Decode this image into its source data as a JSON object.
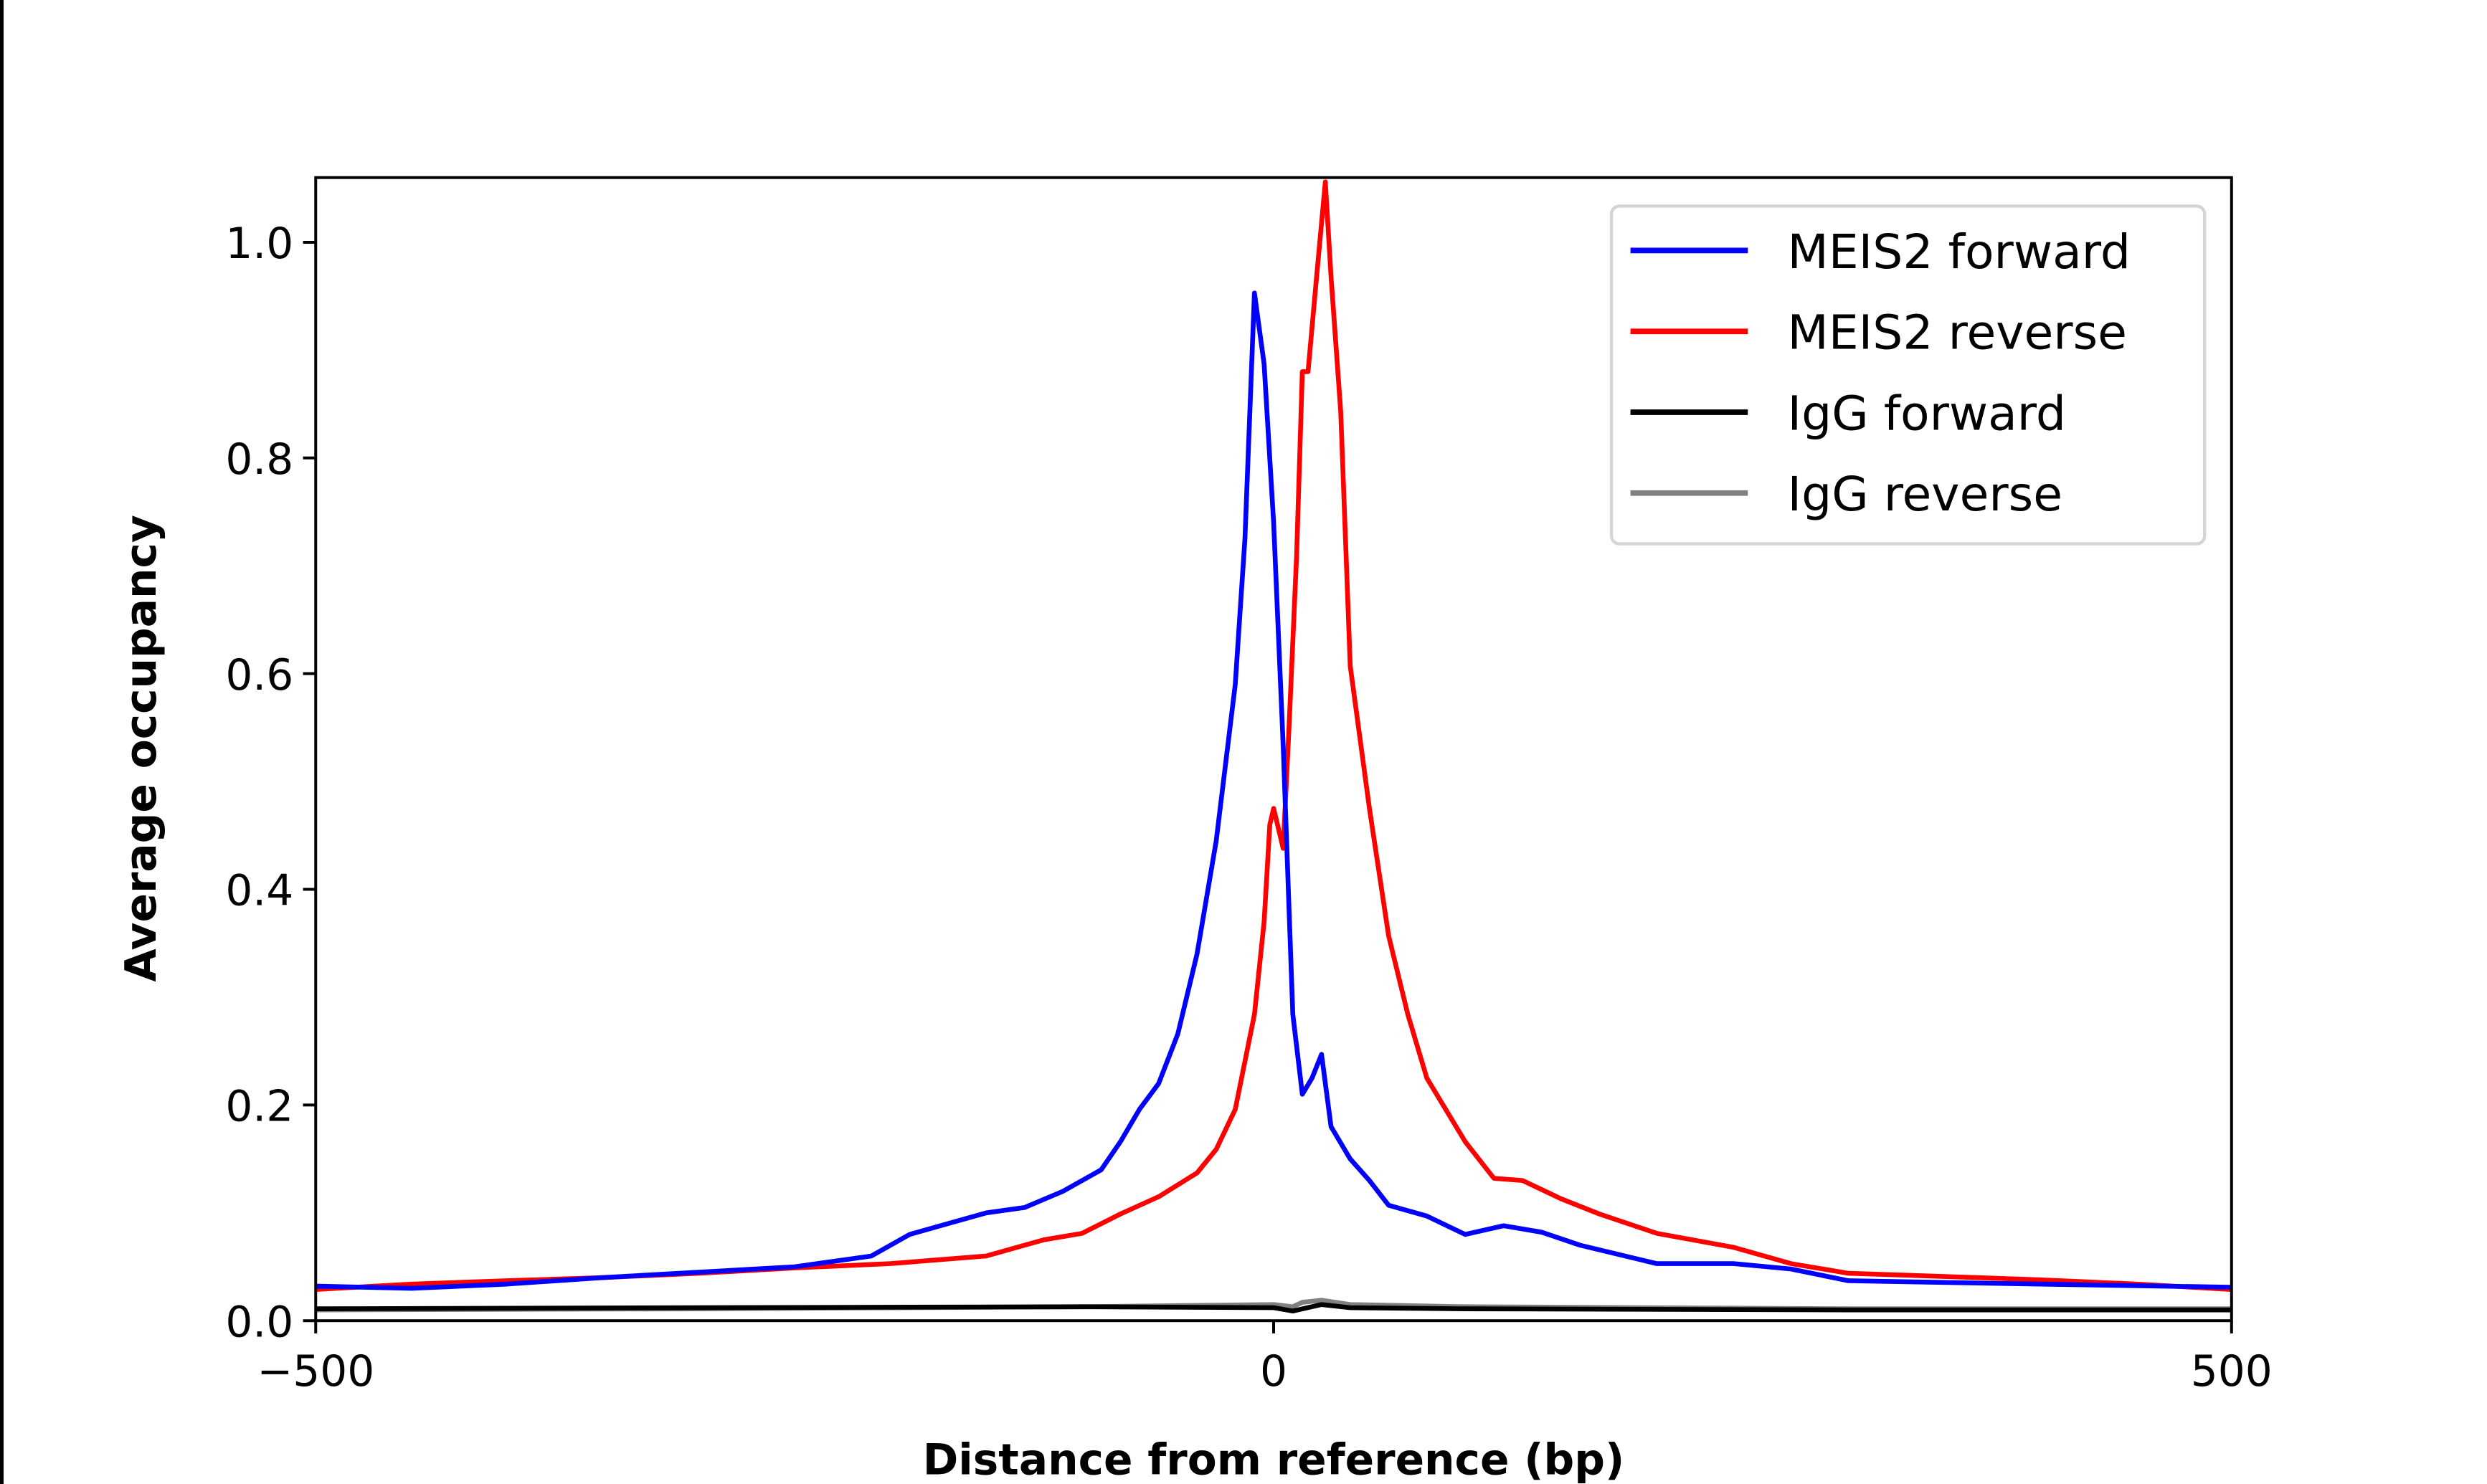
{
  "chart_data": {
    "type": "line",
    "title": "",
    "xlabel": "Distance from reference (bp)",
    "ylabel": "Average occupancy",
    "xlim": [
      -500,
      500
    ],
    "ylim": [
      0,
      1.06
    ],
    "xticks": [
      -500,
      0,
      500
    ],
    "xtick_labels": [
      "−500",
      "0",
      "500"
    ],
    "yticks": [
      0.0,
      0.2,
      0.4,
      0.6,
      0.8,
      1.0
    ],
    "ytick_labels": [
      "0.0",
      "0.2",
      "0.4",
      "0.6",
      "0.8",
      "1.0"
    ],
    "grid": false,
    "legend_position": "top-right",
    "series": [
      {
        "name": "MEIS2 forward",
        "color": "#0000ff",
        "points": [
          [
            -500,
            0.032
          ],
          [
            -450,
            0.03
          ],
          [
            -400,
            0.034
          ],
          [
            -350,
            0.04
          ],
          [
            -300,
            0.045
          ],
          [
            -250,
            0.05
          ],
          [
            -210,
            0.06
          ],
          [
            -190,
            0.08
          ],
          [
            -170,
            0.09
          ],
          [
            -150,
            0.1
          ],
          [
            -130,
            0.105
          ],
          [
            -110,
            0.12
          ],
          [
            -90,
            0.14
          ],
          [
            -80,
            0.166
          ],
          [
            -70,
            0.196
          ],
          [
            -60,
            0.22
          ],
          [
            -50,
            0.266
          ],
          [
            -40,
            0.34
          ],
          [
            -30,
            0.445
          ],
          [
            -20,
            0.59
          ],
          [
            -15,
            0.725
          ],
          [
            -10,
            0.953
          ],
          [
            -5,
            0.887
          ],
          [
            0,
            0.74
          ],
          [
            5,
            0.534
          ],
          [
            10,
            0.284
          ],
          [
            15,
            0.21
          ],
          [
            20,
            0.225
          ],
          [
            25,
            0.247
          ],
          [
            30,
            0.18
          ],
          [
            40,
            0.15
          ],
          [
            50,
            0.13
          ],
          [
            60,
            0.107
          ],
          [
            80,
            0.097
          ],
          [
            100,
            0.08
          ],
          [
            120,
            0.088
          ],
          [
            140,
            0.082
          ],
          [
            160,
            0.07
          ],
          [
            200,
            0.053
          ],
          [
            240,
            0.053
          ],
          [
            270,
            0.048
          ],
          [
            300,
            0.037
          ],
          [
            400,
            0.034
          ],
          [
            500,
            0.031
          ]
        ]
      },
      {
        "name": "MEIS2 reverse",
        "color": "#ff0000",
        "points": [
          [
            -500,
            0.029
          ],
          [
            -450,
            0.034
          ],
          [
            -400,
            0.037
          ],
          [
            -350,
            0.04
          ],
          [
            -300,
            0.044
          ],
          [
            -250,
            0.049
          ],
          [
            -200,
            0.053
          ],
          [
            -150,
            0.06
          ],
          [
            -120,
            0.075
          ],
          [
            -100,
            0.081
          ],
          [
            -80,
            0.099
          ],
          [
            -60,
            0.115
          ],
          [
            -40,
            0.137
          ],
          [
            -30,
            0.159
          ],
          [
            -20,
            0.196
          ],
          [
            -10,
            0.284
          ],
          [
            -5,
            0.37
          ],
          [
            -2,
            0.46
          ],
          [
            0,
            0.475
          ],
          [
            5,
            0.438
          ],
          [
            8,
            0.55
          ],
          [
            12,
            0.71
          ],
          [
            15,
            0.88
          ],
          [
            18,
            0.88
          ],
          [
            22,
            0.96
          ],
          [
            27,
            1.056
          ],
          [
            30,
            0.968
          ],
          [
            35,
            0.843
          ],
          [
            40,
            0.607
          ],
          [
            50,
            0.475
          ],
          [
            60,
            0.357
          ],
          [
            70,
            0.284
          ],
          [
            80,
            0.225
          ],
          [
            100,
            0.166
          ],
          [
            115,
            0.132
          ],
          [
            130,
            0.13
          ],
          [
            150,
            0.113
          ],
          [
            170,
            0.099
          ],
          [
            200,
            0.081
          ],
          [
            240,
            0.068
          ],
          [
            270,
            0.053
          ],
          [
            300,
            0.044
          ],
          [
            350,
            0.041
          ],
          [
            400,
            0.038
          ],
          [
            450,
            0.034
          ],
          [
            500,
            0.029
          ]
        ]
      },
      {
        "name": "IgG forward",
        "color": "#000000",
        "points": [
          [
            -500,
            0.011
          ],
          [
            -300,
            0.012
          ],
          [
            -100,
            0.013
          ],
          [
            0,
            0.012
          ],
          [
            10,
            0.009
          ],
          [
            25,
            0.015
          ],
          [
            40,
            0.012
          ],
          [
            100,
            0.011
          ],
          [
            300,
            0.01
          ],
          [
            500,
            0.01
          ]
        ]
      },
      {
        "name": "IgG reverse",
        "color": "#808080",
        "points": [
          [
            -500,
            0.01
          ],
          [
            -300,
            0.011
          ],
          [
            -100,
            0.013
          ],
          [
            0,
            0.015
          ],
          [
            10,
            0.013
          ],
          [
            15,
            0.017
          ],
          [
            25,
            0.019
          ],
          [
            40,
            0.015
          ],
          [
            100,
            0.013
          ],
          [
            300,
            0.011
          ],
          [
            500,
            0.011
          ]
        ]
      }
    ]
  }
}
